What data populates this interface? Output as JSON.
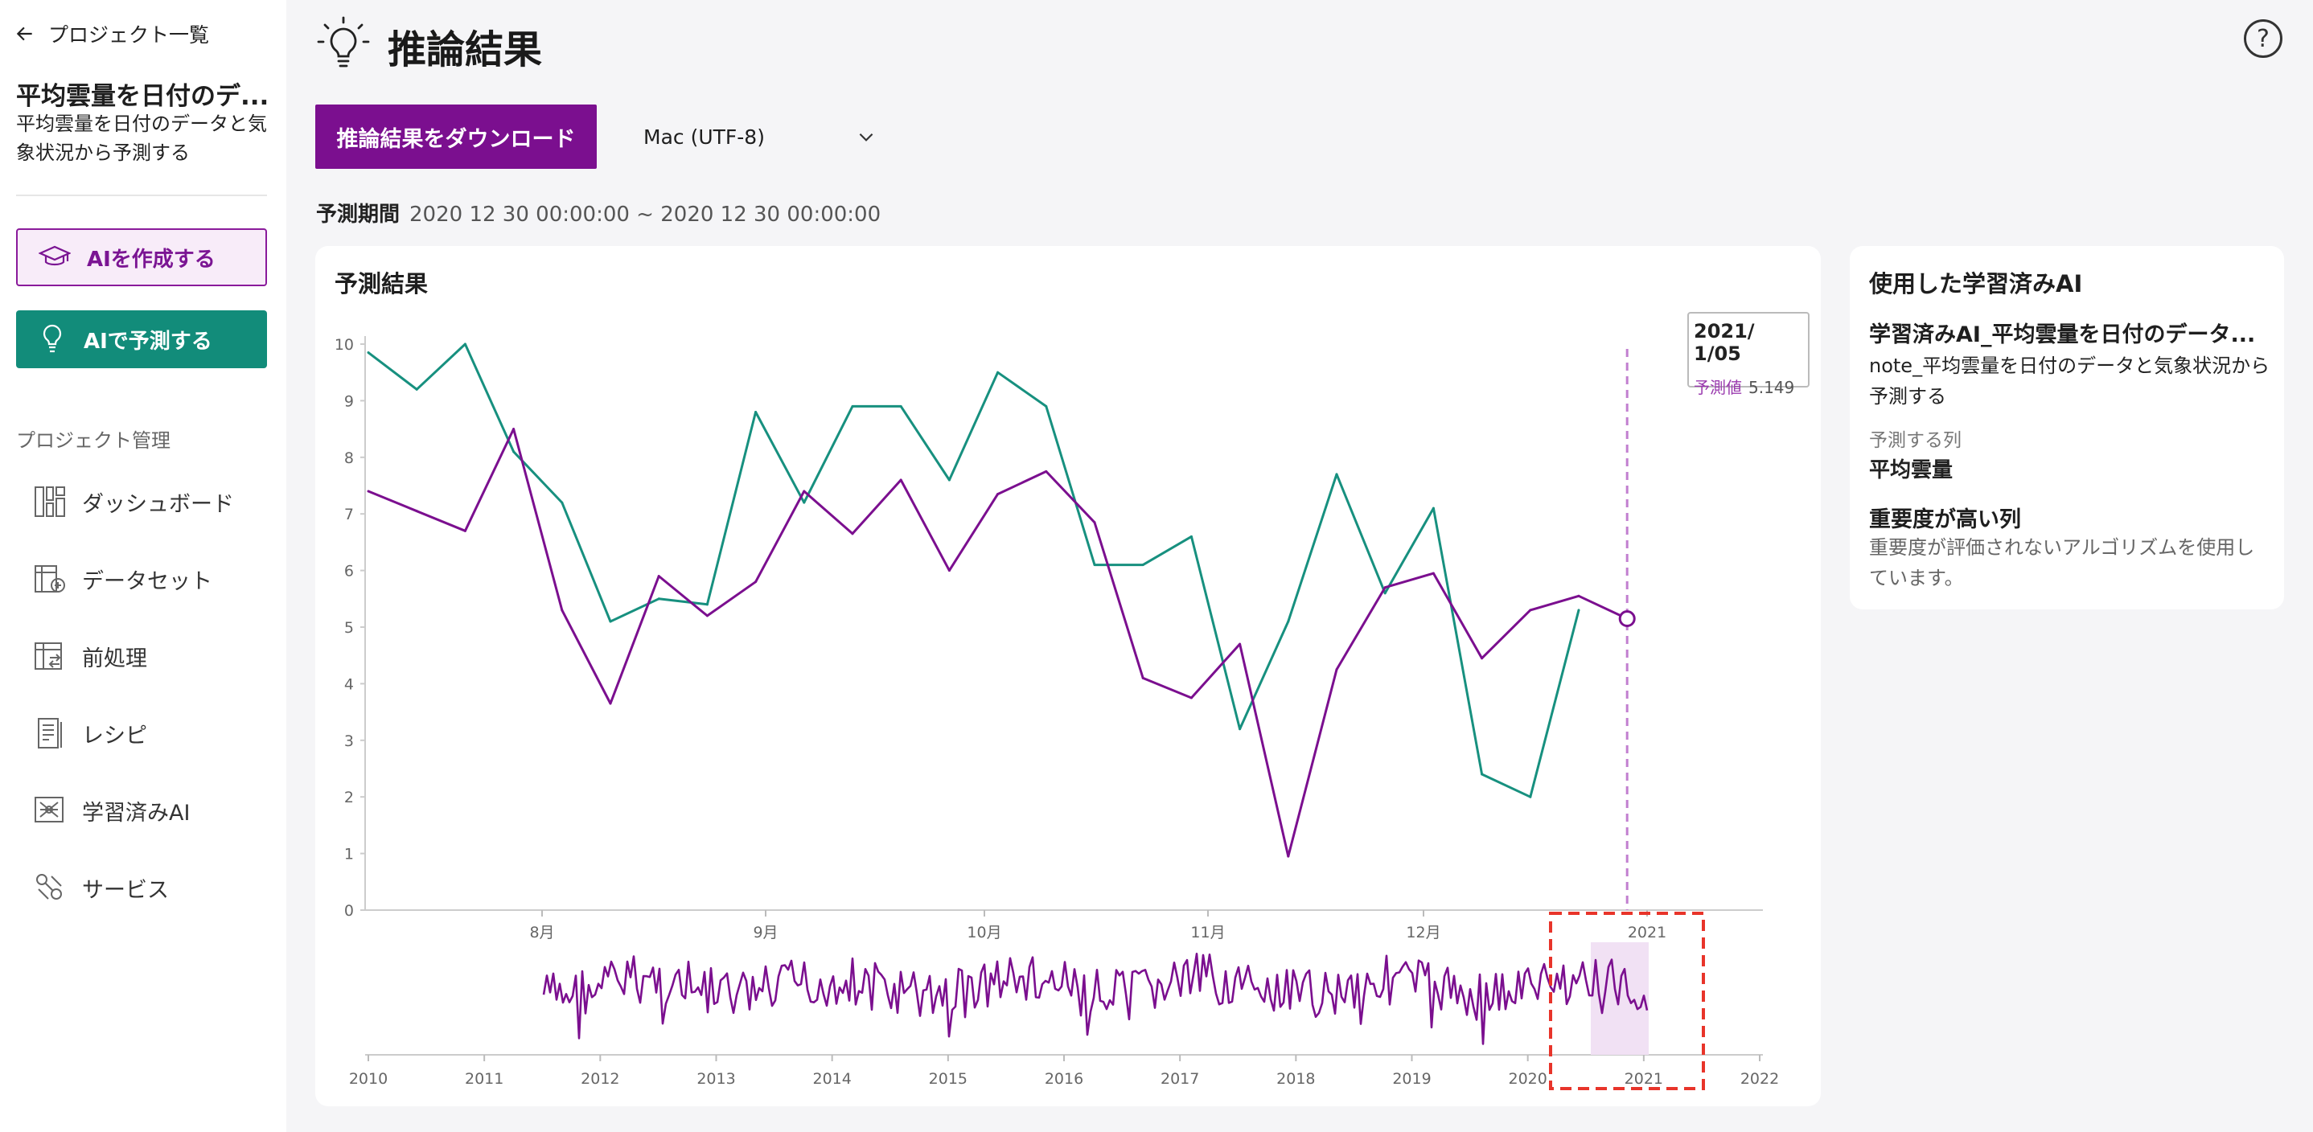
{
  "sidebar": {
    "back_label": "プロジェクト一覧",
    "project_title": "平均雲量を日付のデ...",
    "project_desc": "平均雲量を日付のデータと気象状況から予測する",
    "create_ai": "AIを作成する",
    "predict_ai": "AIで予測する",
    "section_label": "プロジェクト管理",
    "items": [
      {
        "label": "ダッシュボード",
        "icon": "dashboard-icon"
      },
      {
        "label": "データセット",
        "icon": "dataset-icon"
      },
      {
        "label": "前処理",
        "icon": "preprocess-icon"
      },
      {
        "label": "レシピ",
        "icon": "recipe-icon"
      },
      {
        "label": "学習済みAI",
        "icon": "trained-ai-icon"
      },
      {
        "label": "サービス",
        "icon": "service-icon"
      }
    ]
  },
  "header": {
    "title": "推論結果",
    "download_label": "推論結果をダウンロード",
    "encoding": "Mac (UTF-8)",
    "period_label": "予測期間",
    "period_value": "2020 12 30 00:00:00 ~ 2020 12 30 00:00:00"
  },
  "chart_card": {
    "title": "予測結果",
    "tooltip_date": "2021/ 1/05",
    "tooltip_label": "予測値",
    "tooltip_value": "5.149"
  },
  "info": {
    "title": "使用した学習済みAI",
    "ai_name": "学習済みAI_平均雲量を日付のデータ...",
    "ai_note": "note_平均雲量を日付のデータと気象状況から予測する",
    "target_label": "予測する列",
    "target_value": "平均雲量",
    "importance_label": "重要度が高い列",
    "importance_desc": "重要度が評価されないアルゴリズムを使用しています。"
  },
  "colors": {
    "actual": "#17907f",
    "predicted": "#7b0f8f",
    "accent": "#7b0f8f",
    "teal_button": "#128c7a"
  },
  "chart_data": {
    "type": "line",
    "ylim": [
      0,
      10
    ],
    "yticks": [
      0,
      1,
      2,
      3,
      4,
      5,
      6,
      7,
      8,
      9,
      10
    ],
    "xtick_labels": [
      "8月",
      "9月",
      "10月",
      "11月",
      "12月",
      "2021"
    ],
    "series": [
      {
        "values": [
          9.85,
          9.2,
          10.0,
          8.1,
          7.2,
          5.1,
          5.5,
          5.4,
          8.8,
          7.2,
          8.9,
          8.9,
          7.6,
          9.5,
          8.9,
          6.1,
          6.1,
          6.6,
          3.2,
          5.1,
          7.7,
          5.6,
          7.1,
          2.4,
          2.0,
          5.3
        ]
      },
      {
        "values": [
          7.4,
          7.05,
          6.7,
          8.5,
          5.3,
          3.65,
          5.9,
          5.2,
          5.8,
          7.4,
          6.65,
          7.6,
          6.0,
          7.35,
          7.75,
          6.85,
          4.1,
          3.75,
          4.7,
          0.95,
          4.25,
          5.7,
          5.95,
          4.45,
          5.3,
          5.55,
          5.149
        ]
      }
    ],
    "overview": {
      "x_labels": [
        "2010",
        "2011",
        "2012",
        "2013",
        "2014",
        "2015",
        "2016",
        "2017",
        "2018",
        "2019",
        "2020",
        "2021",
        "2022"
      ]
    }
  }
}
